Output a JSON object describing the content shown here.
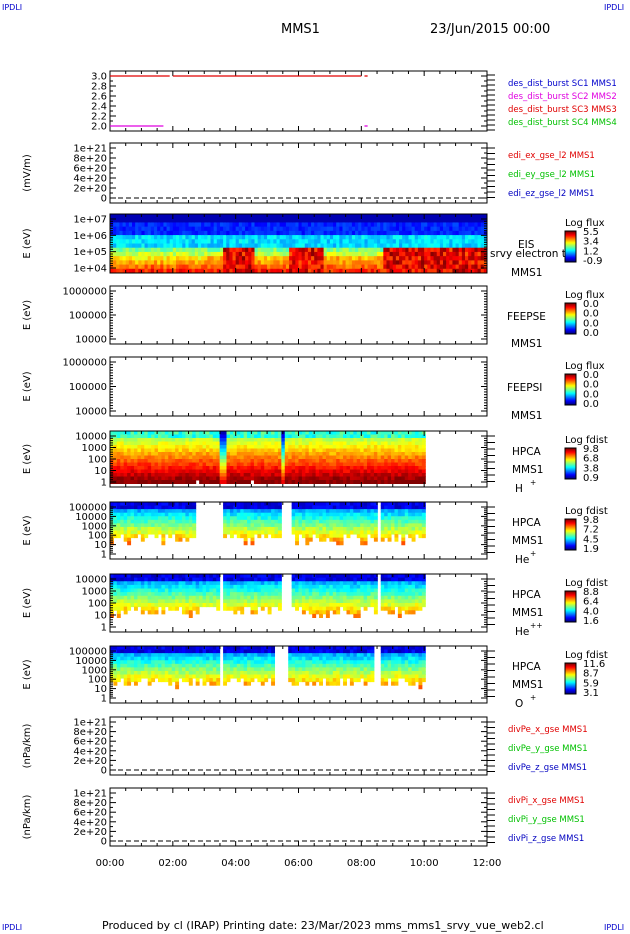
{
  "corners": {
    "tl": "IPDLI",
    "tr": "IPDLI",
    "bl": "IPDLI",
    "br": "IPDLI"
  },
  "header": {
    "title": "MMS1",
    "date": "23/Jun/2015 00:00"
  },
  "footer": {
    "text": "Produced by cl (IRAP)   Printing date: 23/Mar/2023   mms_mms1_srvy_vue_web2.cl"
  },
  "colors": {
    "red": "#e00000",
    "green": "#00c000",
    "blue": "#0000c0",
    "magenta": "#e000e0"
  },
  "time_axis": {
    "ticks": [
      "00:00",
      "02:00",
      "04:00",
      "06:00",
      "08:00",
      "10:00",
      "12:00"
    ],
    "range_hours": [
      0,
      12
    ]
  },
  "chart_data": [
    {
      "type": "line",
      "id": "dist",
      "yticks": [
        "3.0",
        "2.8",
        "2.6",
        "2.4",
        "2.2",
        "2.0"
      ],
      "ylim": [
        1.9,
        3.1
      ],
      "series": [
        {
          "name": "des_dist_burst SC1 MMS1",
          "color": "#0000cc",
          "x": [],
          "y": []
        },
        {
          "name": "des_dist_burst SC2 MMS2",
          "color": "#e000e0",
          "x": [
            0.0,
            1.7,
            8.1,
            8.2
          ],
          "y": [
            2.0,
            2.0,
            2.0,
            2.0
          ]
        },
        {
          "name": "des_dist_burst SC3 MMS3",
          "color": "#e00000",
          "x": [
            0.0,
            1.9,
            2.0,
            8.0,
            8.1,
            8.2
          ],
          "y": [
            3.0,
            3.0,
            3.0,
            3.0,
            3.0,
            3.0
          ]
        },
        {
          "name": "des_dist_burst SC4 MMS4",
          "color": "#00c000",
          "x": [],
          "y": []
        }
      ]
    },
    {
      "type": "line",
      "id": "edi",
      "ylabel": "(mV/m)",
      "yticks": [
        "1e+21",
        "8e+20",
        "6e+20",
        "4e+20",
        "2e+20",
        "0"
      ],
      "series": [
        {
          "name": "edi_ex_gse_l2 MMS1",
          "color": "#e00000"
        },
        {
          "name": "edi_ey_gse_l2 MMS1",
          "color": "#00c000"
        },
        {
          "name": "edi_ez_gse_l2 MMS1",
          "color": "#0000c0"
        }
      ]
    },
    {
      "type": "heatmap",
      "id": "eis",
      "ylabel": "E (eV)",
      "yticks": [
        "1e+07",
        "1e+06",
        "1e+05",
        "1e+04"
      ],
      "right_labels": [
        "EIS",
        "srvy electron to",
        "MMS1"
      ],
      "colorbar": {
        "title": "Log flux",
        "ticks": [
          "5.5",
          "3.4",
          "1.2",
          "-0.9"
        ]
      }
    },
    {
      "type": "heatmap",
      "id": "feepse",
      "ylabel": "E (eV)",
      "yticks": [
        "1000000",
        "100000",
        "10000"
      ],
      "right_labels": [
        "FEEPSE",
        "MMS1"
      ],
      "colorbar": {
        "title": "Log flux",
        "ticks": [
          "0.0",
          "0.0",
          "0.0",
          "0.0"
        ]
      }
    },
    {
      "type": "heatmap",
      "id": "feepsi",
      "ylabel": "E (eV)",
      "yticks": [
        "1000000",
        "100000",
        "10000"
      ],
      "right_labels": [
        "FEEPSI",
        "MMS1"
      ],
      "colorbar": {
        "title": "Log flux",
        "ticks": [
          "0.0",
          "0.0",
          "0.0",
          "0.0"
        ]
      }
    },
    {
      "type": "heatmap",
      "id": "hpca_h",
      "ylabel": "E (eV)",
      "yticks": [
        "10000",
        "1000",
        "100",
        "10",
        "1"
      ],
      "right_labels": [
        "HPCA",
        "MMS1",
        "H",
        "+"
      ],
      "colorbar": {
        "title": "Log fdist",
        "ticks": [
          "9.8",
          "6.8",
          "3.8",
          "0.9"
        ]
      }
    },
    {
      "type": "heatmap",
      "id": "hpca_he",
      "ylabel": "E (eV)",
      "yticks": [
        "100000",
        "10000",
        "1000",
        "100",
        "10",
        "1"
      ],
      "right_labels": [
        "HPCA",
        "MMS1",
        "He",
        "+"
      ],
      "colorbar": {
        "title": "Log fdist",
        "ticks": [
          "9.8",
          "7.2",
          "4.5",
          "1.9"
        ]
      }
    },
    {
      "type": "heatmap",
      "id": "hpca_hepp",
      "ylabel": "E (eV)",
      "yticks": [
        "10000",
        "1000",
        "100",
        "10",
        "1"
      ],
      "right_labels": [
        "HPCA",
        "MMS1",
        "He",
        "++"
      ],
      "colorbar": {
        "title": "Log fdist",
        "ticks": [
          "8.8",
          "6.4",
          "4.0",
          "1.6"
        ]
      }
    },
    {
      "type": "heatmap",
      "id": "hpca_o",
      "ylabel": "E (eV)",
      "yticks": [
        "100000",
        "10000",
        "1000",
        "100",
        "10",
        "1"
      ],
      "right_labels": [
        "HPCA",
        "MMS1",
        "O",
        "+"
      ],
      "colorbar": {
        "title": "Log fdist",
        "ticks": [
          "11.6",
          "8.7",
          "5.9",
          "3.1"
        ]
      }
    },
    {
      "type": "line",
      "id": "divpe",
      "ylabel": "(nPa/km)",
      "yticks": [
        "1e+21",
        "8e+20",
        "6e+20",
        "4e+20",
        "2e+20",
        "0"
      ],
      "series": [
        {
          "name": "divPe_x_gse MMS1",
          "color": "#e00000"
        },
        {
          "name": "divPe_y_gse MMS1",
          "color": "#00c000"
        },
        {
          "name": "divPe_z_gse MMS1",
          "color": "#0000c0"
        }
      ]
    },
    {
      "type": "line",
      "id": "divpi",
      "ylabel": "(nPa/km)",
      "yticks": [
        "1e+21",
        "8e+20",
        "6e+20",
        "4e+20",
        "2e+20",
        "0"
      ],
      "series": [
        {
          "name": "divPi_x_gse MMS1",
          "color": "#e00000"
        },
        {
          "name": "divPi_y_gse MMS1",
          "color": "#00c000"
        },
        {
          "name": "divPi_z_gse MMS1",
          "color": "#0000c0"
        }
      ]
    }
  ]
}
